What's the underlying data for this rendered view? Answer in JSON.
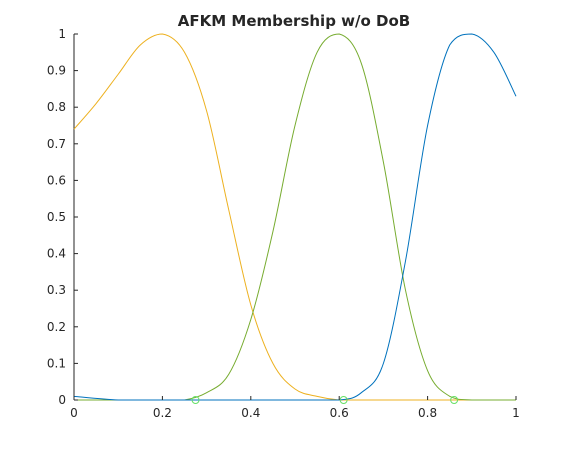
{
  "chart_data": {
    "type": "line",
    "title": "AFKM Membership w/o DoB",
    "xlabel": "",
    "ylabel": "",
    "xlim": [
      0,
      1
    ],
    "ylim": [
      0,
      1
    ],
    "xticks": [
      0,
      0.2,
      0.4,
      0.6,
      0.8,
      1
    ],
    "xtick_labels": [
      "0",
      "0.2",
      "0.4",
      "0.6",
      "0.8",
      "1"
    ],
    "yticks": [
      0,
      0.1,
      0.2,
      0.3,
      0.4,
      0.5,
      0.6,
      0.7,
      0.8,
      0.9,
      1
    ],
    "ytick_labels": [
      "0",
      "0.1",
      "0.2",
      "0.3",
      "0.4",
      "0.5",
      "0.6",
      "0.7",
      "0.8",
      "0.9",
      "1"
    ],
    "grid": false,
    "legend": "none",
    "series": [
      {
        "color": "#EDB120",
        "x": [
          0,
          0.05,
          0.1,
          0.15,
          0.2,
          0.25,
          0.3,
          0.35,
          0.4,
          0.45,
          0.5,
          0.55,
          0.6,
          0.65,
          0.7,
          0.8,
          0.9,
          1
        ],
        "y": [
          0.74,
          0.81,
          0.89,
          0.97,
          1.0,
          0.95,
          0.79,
          0.52,
          0.26,
          0.1,
          0.03,
          0.01,
          0.0,
          0.0,
          0.0,
          0.0,
          0.0,
          0.0
        ]
      },
      {
        "color": "#77AC30",
        "x": [
          0,
          0.1,
          0.2,
          0.25,
          0.3,
          0.35,
          0.4,
          0.45,
          0.5,
          0.55,
          0.6,
          0.65,
          0.7,
          0.75,
          0.8,
          0.85,
          0.9,
          1
        ],
        "y": [
          0.0,
          0.0,
          0.0,
          0.0,
          0.02,
          0.07,
          0.22,
          0.46,
          0.75,
          0.95,
          1.0,
          0.92,
          0.65,
          0.3,
          0.08,
          0.01,
          0.0,
          0.0
        ]
      },
      {
        "color": "#0072BD",
        "x": [
          0,
          0.1,
          0.2,
          0.3,
          0.4,
          0.5,
          0.6,
          0.65,
          0.7,
          0.75,
          0.8,
          0.85,
          0.9,
          0.95,
          1
        ],
        "y": [
          0.01,
          0.0,
          0.0,
          0.0,
          0.0,
          0.0,
          0.0,
          0.02,
          0.1,
          0.38,
          0.75,
          0.97,
          1.0,
          0.95,
          0.83
        ]
      }
    ],
    "markers": {
      "color": "#66E066",
      "shape": "circle",
      "x": [
        0.275,
        0.61,
        0.86
      ],
      "y": [
        0,
        0,
        0
      ]
    }
  }
}
